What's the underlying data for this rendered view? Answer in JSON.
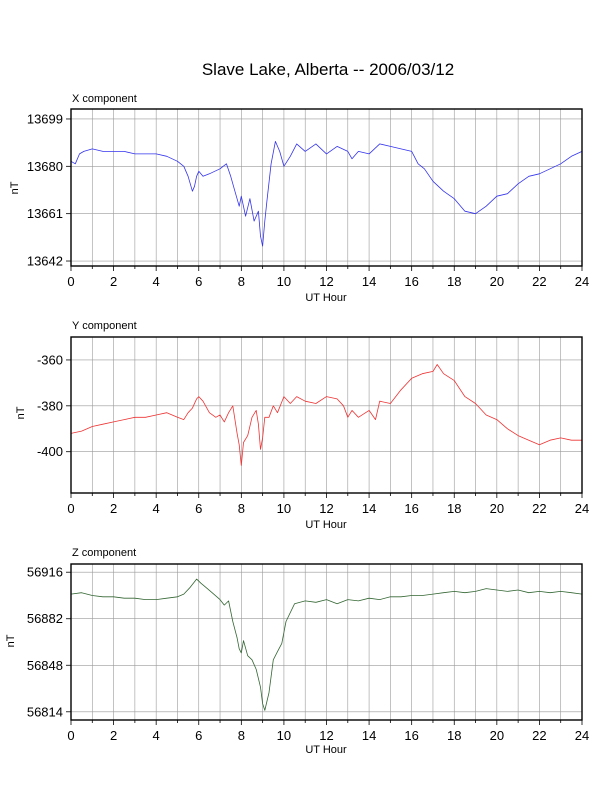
{
  "chart_data": [
    {
      "type": "line",
      "title": "Slave Lake, Alberta -- 2006/03/12",
      "panel_label": "X component",
      "xlabel": "UT Hour",
      "ylabel": "nT",
      "xlim": [
        0,
        24
      ],
      "ylim": [
        13640,
        13703
      ],
      "xticks": [
        0,
        2,
        4,
        6,
        8,
        10,
        12,
        14,
        16,
        18,
        20,
        22,
        24
      ],
      "yticks": [
        13642,
        13661,
        13680,
        13699
      ],
      "grid": true,
      "color": "#3333ee",
      "series": [
        {
          "x": [
            0,
            0.2,
            0.4,
            0.6,
            1,
            1.5,
            2,
            2.5,
            3,
            3.5,
            4,
            4.5,
            5,
            5.3,
            5.5,
            5.7,
            5.8,
            5.9,
            6,
            6.2,
            6.5,
            7,
            7.3,
            7.5,
            7.7,
            7.9,
            8,
            8.2,
            8.4,
            8.6,
            8.8,
            8.9,
            9,
            9.1,
            9.2,
            9.4,
            9.6,
            9.8,
            10,
            10.3,
            10.6,
            11,
            11.5,
            12,
            12.5,
            13,
            13.2,
            13.5,
            14,
            14.5,
            15,
            15.5,
            16,
            16.3,
            16.6,
            17,
            17.5,
            18,
            18.5,
            19,
            19.5,
            20,
            20.5,
            21,
            21.5,
            22,
            22.5,
            23,
            23.5,
            24
          ],
          "values": [
            13682,
            13681,
            13685,
            13686,
            13687,
            13686,
            13686,
            13686,
            13685,
            13685,
            13685,
            13684,
            13682,
            13680,
            13676,
            13670,
            13672,
            13676,
            13678,
            13676,
            13677,
            13679,
            13681,
            13676,
            13670,
            13664,
            13668,
            13660,
            13667,
            13658,
            13662,
            13652,
            13648,
            13658,
            13666,
            13681,
            13690,
            13686,
            13680,
            13684,
            13689,
            13686,
            13689,
            13685,
            13688,
            13686,
            13683,
            13686,
            13685,
            13689,
            13688,
            13687,
            13686,
            13681,
            13679,
            13674,
            13670,
            13667,
            13662,
            13661,
            13664,
            13668,
            13669,
            13673,
            13676,
            13677,
            13679,
            13681,
            13684,
            13686
          ]
        }
      ]
    },
    {
      "type": "line",
      "panel_label": "Y component",
      "xlabel": "UT Hour",
      "ylabel": "nT",
      "xlim": [
        0,
        24
      ],
      "ylim": [
        -418,
        -350
      ],
      "xticks": [
        0,
        2,
        4,
        6,
        8,
        10,
        12,
        14,
        16,
        18,
        20,
        22,
        24
      ],
      "yticks": [
        -360,
        -380,
        -400
      ],
      "grid": true,
      "color": "#ee3333",
      "series": [
        {
          "x": [
            0,
            0.5,
            1,
            1.5,
            2,
            2.5,
            3,
            3.5,
            4,
            4.5,
            5,
            5.3,
            5.5,
            5.7,
            5.9,
            6,
            6.2,
            6.5,
            6.8,
            7,
            7.2,
            7.4,
            7.6,
            7.8,
            7.9,
            8,
            8.1,
            8.3,
            8.5,
            8.7,
            8.8,
            8.9,
            9,
            9.1,
            9.3,
            9.5,
            9.7,
            10,
            10.3,
            10.6,
            11,
            11.5,
            12,
            12.5,
            12.8,
            13,
            13.2,
            13.5,
            14,
            14.3,
            14.5,
            15,
            15.5,
            16,
            16.5,
            17,
            17.2,
            17.5,
            18,
            18.5,
            19,
            19.5,
            20,
            20.5,
            21,
            21.5,
            22,
            22.5,
            23,
            23.5,
            24
          ],
          "values": [
            -392,
            -391,
            -389,
            -388,
            -387,
            -386,
            -385,
            -385,
            -384,
            -383,
            -385,
            -386,
            -383,
            -381,
            -377,
            -376,
            -378,
            -383,
            -385,
            -384,
            -387,
            -383,
            -380,
            -392,
            -397,
            -406,
            -396,
            -393,
            -385,
            -382,
            -388,
            -399,
            -394,
            -385,
            -385,
            -380,
            -383,
            -376,
            -379,
            -376,
            -378,
            -379,
            -376,
            -377,
            -380,
            -385,
            -382,
            -385,
            -382,
            -386,
            -378,
            -379,
            -373,
            -368,
            -366,
            -365,
            -362,
            -366,
            -369,
            -376,
            -379,
            -384,
            -386,
            -390,
            -393,
            -395,
            -397,
            -395,
            -394,
            -395,
            -395
          ]
        }
      ]
    },
    {
      "type": "line",
      "panel_label": "Z component",
      "xlabel": "UT Hour",
      "ylabel": "nT",
      "xlim": [
        0,
        24
      ],
      "ylim": [
        56808,
        56922
      ],
      "xticks": [
        0,
        2,
        4,
        6,
        8,
        10,
        12,
        14,
        16,
        18,
        20,
        22,
        24
      ],
      "yticks": [
        56814,
        56848,
        56882,
        56916
      ],
      "grid": true,
      "color": "#336633",
      "series": [
        {
          "x": [
            0,
            0.5,
            1,
            1.5,
            2,
            2.5,
            3,
            3.5,
            4,
            4.5,
            5,
            5.3,
            5.6,
            5.9,
            6.1,
            6.4,
            6.7,
            7,
            7.2,
            7.4,
            7.6,
            7.8,
            7.9,
            8,
            8.1,
            8.3,
            8.5,
            8.7,
            8.9,
            9,
            9.1,
            9.3,
            9.5,
            9.7,
            9.9,
            10.1,
            10.5,
            11,
            11.5,
            12,
            12.5,
            13,
            13.5,
            14,
            14.5,
            15,
            15.5,
            16,
            16.5,
            17,
            17.5,
            18,
            18.5,
            19,
            19.5,
            20,
            20.5,
            21,
            21.5,
            22,
            22.5,
            23,
            23.5,
            24
          ],
          "values": [
            56900,
            56901,
            56899,
            56898,
            56898,
            56897,
            56897,
            56896,
            56896,
            56897,
            56898,
            56900,
            56905,
            56911,
            56908,
            56904,
            56900,
            56896,
            56892,
            56895,
            56880,
            56868,
            56860,
            56857,
            56866,
            56855,
            56852,
            56845,
            56832,
            56820,
            56815,
            56828,
            56852,
            56858,
            56864,
            56880,
            56893,
            56895,
            56894,
            56896,
            56893,
            56896,
            56895,
            56897,
            56896,
            56898,
            56898,
            56899,
            56899,
            56900,
            56901,
            56902,
            56901,
            56902,
            56904,
            56903,
            56902,
            56903,
            56901,
            56902,
            56901,
            56902,
            56901,
            56900
          ]
        }
      ]
    }
  ]
}
